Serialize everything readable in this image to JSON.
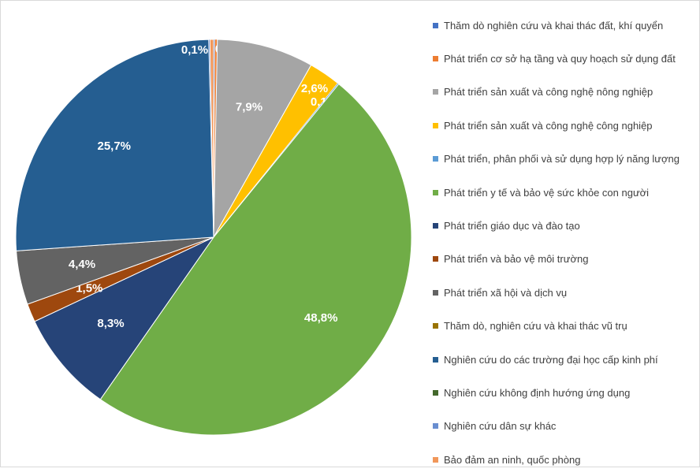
{
  "chart_data": {
    "type": "pie",
    "start_angle_deg": 0,
    "direction": "clockwise",
    "legend_position": "right",
    "slices": [
      {
        "label": "Thăm dò nghiên cứu và khai thác đất, khí quyển",
        "value": 0.1,
        "display": "",
        "color": "#4472c4",
        "label_color": "#ffffff"
      },
      {
        "label": "Phát triển cơ sở hạ tầng và quy hoạch sử dụng đất",
        "value": 0.2,
        "display": "0,2%",
        "color": "#ed7d31",
        "label_color": "#ffffff"
      },
      {
        "label": "Phát triển sản xuất và công nghệ nông nghiệp",
        "value": 7.9,
        "display": "7,9%",
        "color": "#a5a5a5",
        "label_color": "#ffffff"
      },
      {
        "label": "Phát triển sản xuất và công nghệ công nghiệp",
        "value": 2.6,
        "display": "2,6%",
        "color": "#ffc000",
        "label_color": "#ffffff"
      },
      {
        "label": "Phát triển, phân phối và sử dụng hợp lý năng lượng",
        "value": 0.1,
        "display": "0,1%",
        "color": "#5b9bd5",
        "label_color": "#ffffff"
      },
      {
        "label": "Phát triển y tế và bảo vệ sức khỏe con người",
        "value": 48.8,
        "display": "48,8%",
        "color": "#70ad47",
        "label_color": "#ffffff"
      },
      {
        "label": "Phát triển giáo dục và đào tạo",
        "value": 8.3,
        "display": "8,3%",
        "color": "#264478",
        "label_color": "#ffffff"
      },
      {
        "label": "Phát triển và bảo vệ môi trường",
        "value": 1.5,
        "display": "1,5%",
        "color": "#9e480e",
        "label_color": "#ffffff"
      },
      {
        "label": "Phát triển xã hội và dịch vụ",
        "value": 4.4,
        "display": "4,4%",
        "color": "#636363",
        "label_color": "#ffffff"
      },
      {
        "label": "Thăm dò, nghiên cứu và khai thác vũ trụ",
        "value": 0.0,
        "display": "",
        "color": "#997300",
        "label_color": "#ffffff"
      },
      {
        "label": "Nghiên cứu do các trường đại học cấp kinh phí",
        "value": 25.7,
        "display": "25,7%",
        "color": "#255e91",
        "label_color": "#ffffff"
      },
      {
        "label": "Nghiên cứu không định hướng ứng dụng",
        "value": 0.0,
        "display": "",
        "color": "#43682b",
        "label_color": "#ffffff"
      },
      {
        "label": "Nghiên cứu dân sự khác",
        "value": 0.1,
        "display": "0,1%",
        "color": "#698ed0",
        "label_color": "#ffffff"
      },
      {
        "label": "Bảo đảm an ninh, quốc phòng",
        "value": 0.3,
        "display": "",
        "color": "#f1975a",
        "label_color": "#ffffff"
      }
    ]
  }
}
